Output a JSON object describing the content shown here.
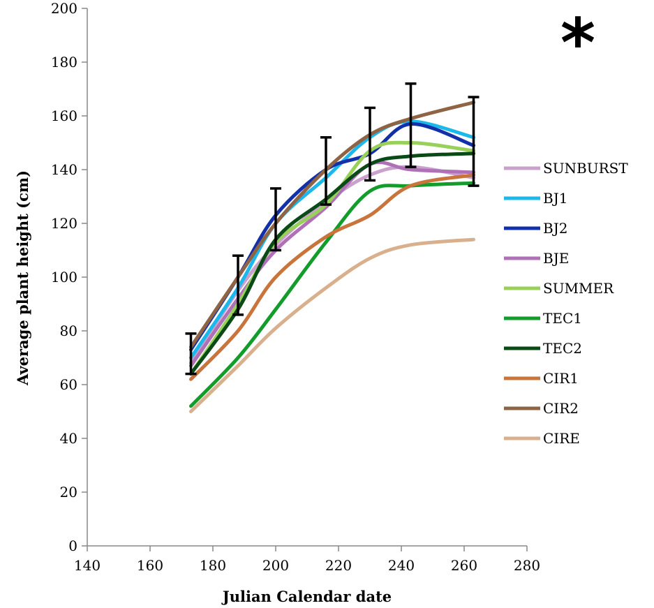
{
  "chart_data": {
    "type": "line",
    "title": "",
    "xlabel": "Julian Calendar date",
    "ylabel": "Average plant height (cm)",
    "xlim": [
      140,
      280
    ],
    "ylim": [
      0,
      200
    ],
    "xticks": [
      "140",
      "160",
      "180",
      "200",
      "220",
      "240",
      "260",
      "280"
    ],
    "yticks": [
      "0",
      "20",
      "40",
      "60",
      "80",
      "100",
      "120",
      "140",
      "160",
      "180",
      "200"
    ],
    "annotation": "*",
    "legend_position": "right",
    "grid": false,
    "x": [
      173,
      188,
      200,
      216,
      230,
      243,
      263
    ],
    "series": [
      {
        "name": "SUNBURST",
        "color": "#c9a1cc",
        "values": [
          68,
          95,
          112,
          128,
          138,
          141,
          137
        ]
      },
      {
        "name": "BJ1",
        "color": "#1cb8ec",
        "values": [
          70,
          96,
          120,
          137,
          152,
          158,
          152
        ]
      },
      {
        "name": "BJ2",
        "color": "#1430a8",
        "values": [
          73,
          100,
          123,
          140,
          146,
          157,
          149
        ]
      },
      {
        "name": "BJE",
        "color": "#b070b8",
        "values": [
          67,
          92,
          110,
          126,
          142,
          140,
          139
        ]
      },
      {
        "name": "SUMMER",
        "color": "#98d05a",
        "values": [
          64,
          90,
          113,
          127,
          147,
          150,
          147
        ]
      },
      {
        "name": "TEC1",
        "color": "#129c2a",
        "values": [
          52,
          70,
          88,
          113,
          132,
          134,
          135
        ]
      },
      {
        "name": "TEC2",
        "color": "#0a4a16",
        "values": [
          64,
          88,
          114,
          129,
          142,
          145,
          146
        ]
      },
      {
        "name": "CIR1",
        "color": "#c8743a",
        "values": [
          62,
          80,
          100,
          115,
          123,
          134,
          138
        ]
      },
      {
        "name": "CIR2",
        "color": "#8f6444",
        "values": [
          74,
          100,
          120,
          140,
          153,
          159,
          165
        ]
      },
      {
        "name": "CIRE",
        "color": "#d9b08e",
        "values": [
          50,
          67,
          81,
          96,
          107,
          112,
          114
        ]
      }
    ],
    "error_bars": [
      {
        "x": 173,
        "low": 64,
        "high": 79
      },
      {
        "x": 188,
        "low": 86,
        "high": 108
      },
      {
        "x": 200,
        "low": 110,
        "high": 133
      },
      {
        "x": 216,
        "low": 127,
        "high": 152
      },
      {
        "x": 230,
        "low": 136,
        "high": 163
      },
      {
        "x": 243,
        "low": 141,
        "high": 172
      },
      {
        "x": 263,
        "low": 134,
        "high": 167
      }
    ]
  }
}
